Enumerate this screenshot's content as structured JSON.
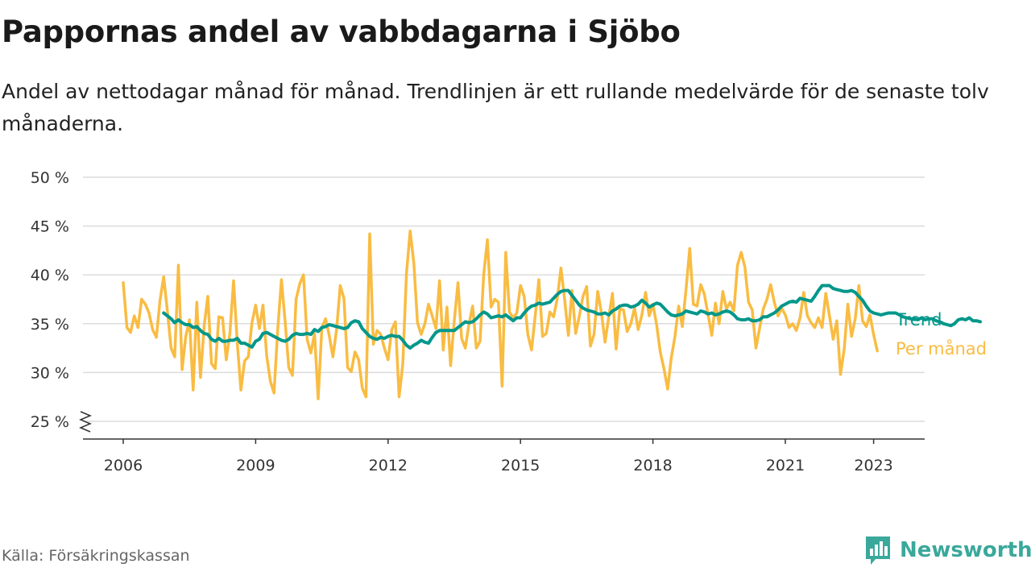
{
  "title": "Pappornas andel av vabbdagarna i Sjöbo",
  "subtitle": "Andel av nettodagar månad för månad. Trendlinjen är ett rullande medelvärde för de senaste tolv månaderna.",
  "source": "Källa: Försäkringskassan",
  "brand": {
    "name": "Newsworthy",
    "icon": "newsworthy-logo-icon",
    "color": "#3aa89b"
  },
  "chart_data": {
    "type": "line",
    "title": "Pappornas andel av vabbdagarna i Sjöbo",
    "ylim": [
      25,
      50
    ],
    "yticks": [
      25,
      30,
      35,
      40,
      45,
      50
    ],
    "ytick_labels": [
      "25 %",
      "30 %",
      "35 %",
      "40 %",
      "45 %",
      "50 %"
    ],
    "xticks": [
      2006,
      2009,
      2012,
      2015,
      2018,
      2021,
      2023
    ],
    "xtick_labels": [
      "2006",
      "2009",
      "2012",
      "2015",
      "2018",
      "2021",
      "2023"
    ],
    "grid": true,
    "axis_break": true,
    "legend": "direct labels at right end of lines",
    "series": [
      {
        "name": "Per månad",
        "color": "#f9bc42",
        "x_start": "2006-01",
        "values": [
          39.2,
          34.6,
          34.1,
          35.8,
          34.6,
          37.5,
          37.0,
          36.1,
          34.4,
          33.6,
          37.4,
          39.8,
          36.3,
          32.5,
          31.6,
          41.0,
          30.3,
          33.7,
          35.4,
          28.2,
          37.2,
          29.5,
          34.8,
          37.8,
          30.9,
          30.4,
          35.7,
          35.6,
          31.3,
          34.0,
          39.4,
          33.0,
          28.2,
          31.2,
          31.6,
          35.1,
          36.9,
          34.5,
          36.9,
          31.7,
          29.1,
          27.9,
          34.4,
          39.5,
          35.3,
          30.5,
          29.7,
          37.5,
          39.1,
          40.0,
          33.4,
          32.0,
          34.0,
          27.3,
          34.6,
          35.5,
          33.8,
          31.6,
          34.4,
          38.9,
          37.6,
          30.5,
          30.1,
          32.1,
          31.3,
          28.4,
          27.5,
          44.2,
          32.9,
          34.3,
          33.9,
          32.5,
          31.3,
          34.4,
          35.2,
          27.5,
          30.9,
          40.1,
          44.5,
          41.2,
          35.1,
          33.9,
          35.0,
          37.0,
          35.8,
          34.5,
          39.4,
          32.3,
          36.7,
          30.7,
          35.3,
          39.2,
          33.5,
          32.5,
          35.0,
          36.8,
          32.5,
          33.2,
          40.0,
          43.6,
          36.7,
          37.5,
          37.2,
          28.6,
          42.3,
          36.2,
          35.6,
          36.1,
          38.9,
          37.8,
          33.9,
          32.3,
          35.8,
          39.5,
          33.7,
          34.0,
          36.2,
          35.7,
          37.6,
          40.7,
          37.5,
          33.8,
          38.4,
          34.0,
          35.8,
          37.8,
          38.8,
          32.7,
          33.9,
          38.3,
          36.1,
          33.1,
          35.7,
          38.1,
          32.4,
          36.5,
          36.4,
          34.2,
          35.0,
          36.6,
          34.4,
          35.9,
          38.2,
          35.8,
          37.0,
          34.9,
          32.1,
          30.4,
          28.3,
          31.5,
          33.7,
          36.8,
          34.7,
          38.5,
          42.7,
          37.0,
          36.8,
          39.0,
          38.0,
          35.9,
          33.8,
          37.1,
          35.0,
          38.3,
          36.5,
          37.2,
          36.3,
          41.0,
          42.3,
          40.8,
          37.2,
          36.4,
          32.5,
          34.5,
          36.5,
          37.5,
          39.0,
          37.2,
          35.8,
          36.6,
          35.9,
          34.6,
          35.0,
          34.3,
          35.6,
          38.2,
          35.8,
          35.1,
          34.6,
          35.6,
          34.6,
          38.1,
          35.8,
          33.4,
          35.3,
          29.8,
          32.4,
          37.0,
          33.7,
          35.5,
          38.9,
          35.3,
          34.7,
          35.9,
          33.9,
          32.2
        ]
      },
      {
        "name": "Trend",
        "color": "#00978a",
        "x_start": "2006-12",
        "values": [
          36.1,
          35.8,
          35.5,
          35.1,
          35.4,
          35.1,
          34.9,
          34.9,
          34.6,
          34.7,
          34.3,
          34.0,
          33.9,
          33.4,
          33.2,
          33.5,
          33.2,
          33.2,
          33.3,
          33.3,
          33.5,
          33.0,
          33.0,
          32.8,
          32.6,
          33.2,
          33.4,
          34.0,
          34.1,
          33.9,
          33.7,
          33.5,
          33.3,
          33.2,
          33.4,
          33.8,
          34.0,
          33.9,
          33.9,
          34.0,
          33.9,
          34.4,
          34.2,
          34.6,
          34.7,
          34.9,
          34.8,
          34.7,
          34.6,
          34.5,
          34.6,
          35.1,
          35.3,
          35.2,
          34.5,
          34.1,
          33.7,
          33.5,
          33.4,
          33.6,
          33.5,
          33.7,
          33.8,
          33.7,
          33.7,
          33.3,
          32.8,
          32.5,
          32.8,
          33.0,
          33.3,
          33.1,
          33.0,
          33.6,
          34.1,
          34.3,
          34.3,
          34.3,
          34.3,
          34.3,
          34.6,
          34.9,
          35.2,
          35.1,
          35.2,
          35.5,
          35.9,
          36.2,
          36.0,
          35.6,
          35.7,
          35.8,
          35.7,
          35.9,
          35.6,
          35.3,
          35.6,
          35.6,
          36.1,
          36.5,
          36.8,
          36.9,
          37.1,
          37.0,
          37.1,
          37.2,
          37.6,
          38.0,
          38.3,
          38.4,
          38.4,
          37.9,
          37.4,
          36.9,
          36.6,
          36.4,
          36.3,
          36.2,
          36.0,
          36.0,
          36.1,
          35.9,
          36.3,
          36.5,
          36.8,
          36.9,
          36.9,
          36.7,
          36.8,
          37.0,
          37.4,
          37.1,
          36.7,
          36.9,
          37.1,
          37.0,
          36.6,
          36.2,
          35.9,
          35.8,
          35.9,
          36.0,
          36.3,
          36.2,
          36.1,
          36.0,
          36.3,
          36.2,
          36.0,
          36.1,
          35.9,
          36.0,
          36.2,
          36.3,
          36.2,
          35.9,
          35.5,
          35.4,
          35.4,
          35.5,
          35.3,
          35.3,
          35.4,
          35.7,
          35.7,
          35.9,
          36.1,
          36.4,
          36.8,
          37.0,
          37.2,
          37.3,
          37.2,
          37.6,
          37.5,
          37.4,
          37.3,
          37.8,
          38.4,
          38.9,
          38.9,
          38.9,
          38.6,
          38.5,
          38.4,
          38.3,
          38.3,
          38.4,
          38.2,
          37.8,
          37.4,
          36.8,
          36.3,
          36.1,
          36.0,
          35.9,
          36.0,
          36.1,
          36.1,
          36.1,
          35.9,
          35.7,
          35.6,
          35.5,
          35.5,
          35.4,
          35.6,
          35.4,
          35.5,
          35.5,
          35.3,
          35.2,
          35.0,
          34.9,
          34.8,
          35.0,
          35.4,
          35.5,
          35.4,
          35.6,
          35.3,
          35.3,
          35.2
        ]
      }
    ]
  }
}
